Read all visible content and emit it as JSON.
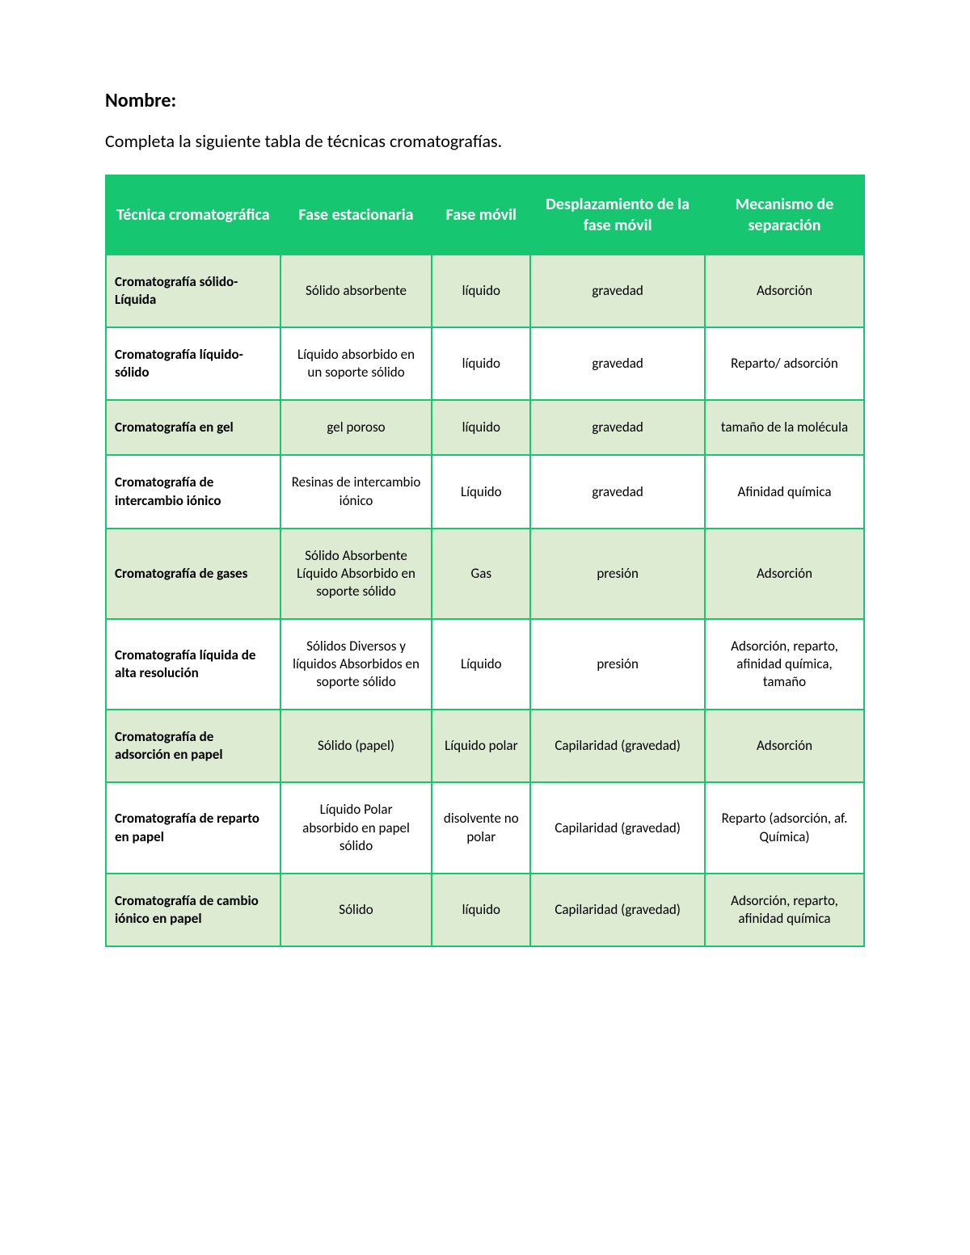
{
  "title_label": "Nombre:",
  "instruction": "Completa la siguiente tabla de técnicas cromatografías.",
  "table": {
    "header_bg": "#17c670",
    "header_text_color": "#ffffff",
    "border_color": "#17c670",
    "row_alt_bg": "#dcebd2",
    "row_bg": "#ffffff",
    "columns": [
      "Técnica cromatográfica",
      "Fase estacionaria",
      "Fase móvil",
      "Desplazamiento de la fase móvil",
      "Mecanismo de separación"
    ],
    "rows": [
      {
        "technique": "Cromatografía sólido-Líquida",
        "stationary": "Sólido absorbente",
        "mobile": "líquido",
        "displacement": "gravedad",
        "mechanism": "Adsorción"
      },
      {
        "technique": "Cromatografía líquido-sólido",
        "stationary": "Líquido absorbido en un soporte sólido",
        "mobile": "líquido",
        "displacement": "gravedad",
        "mechanism": "Reparto/ adsorción"
      },
      {
        "technique": "Cromatografía en gel",
        "stationary": "gel poroso",
        "mobile": "líquido",
        "displacement": "gravedad",
        "mechanism": "tamaño de la molécula"
      },
      {
        "technique": "Cromatografía de intercambio iónico",
        "stationary": "Resinas de intercambio iónico",
        "mobile": "Líquido",
        "displacement": "gravedad",
        "mechanism": "Afinidad química"
      },
      {
        "technique": "Cromatografía de gases",
        "stationary": "Sólido Absorbente Líquido Absorbido en soporte sólido",
        "mobile": "Gas",
        "displacement": "presión",
        "mechanism": "Adsorción"
      },
      {
        "technique": "Cromatografía líquida de alta resolución",
        "stationary": "Sólidos Diversos y líquidos Absorbidos en soporte sólido",
        "mobile": "Líquido",
        "displacement": "presión",
        "mechanism": "Adsorción, reparto, afinidad química, tamaño"
      },
      {
        "technique": "Cromatografía de adsorción en papel",
        "stationary": "Sólido (papel)",
        "mobile": "Líquido polar",
        "displacement": "Capilaridad (gravedad)",
        "mechanism": "Adsorción"
      },
      {
        "technique": "Cromatografía de reparto en papel",
        "stationary": "Líquido Polar absorbido en papel sólido",
        "mobile": "disolvente no polar",
        "displacement": "Capilaridad (gravedad)",
        "mechanism": "Reparto (adsorción, af. Química)"
      },
      {
        "technique": "Cromatografía de cambio iónico en papel",
        "stationary": "Sólido",
        "mobile": "líquido",
        "displacement": "Capilaridad (gravedad)",
        "mechanism": "Adsorción, reparto, afinidad química"
      }
    ]
  }
}
